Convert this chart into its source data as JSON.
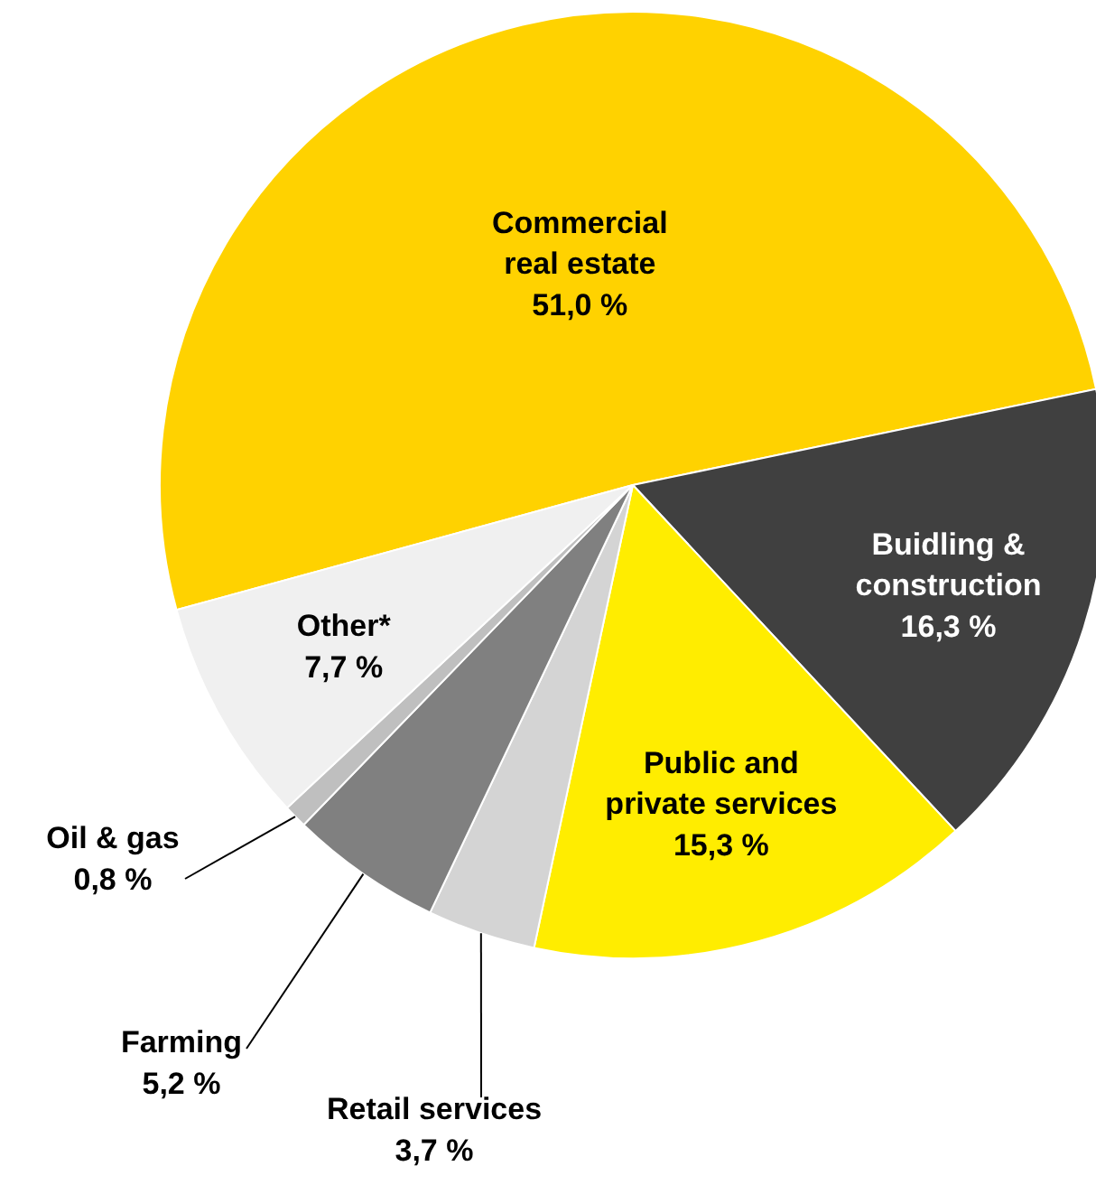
{
  "chart_data": {
    "type": "pie",
    "categories": [
      "Commercial\nreal estate",
      "Buidling &\nconstruction",
      "Public and\nprivate services",
      "Retail services",
      "Farming",
      "Oil & gas",
      "Other*"
    ],
    "values": [
      51.0,
      16.3,
      15.3,
      3.7,
      5.2,
      0.8,
      7.7
    ],
    "value_labels": [
      "51,0 %",
      "16,3 %",
      "15,3 %",
      "3,7 %",
      "5,2 %",
      "0,8 %",
      "7,7 %"
    ],
    "colors": [
      "#ffd200",
      "#404040",
      "#ffed00",
      "#d4d4d4",
      "#808080",
      "#bfbfbf",
      "#f0f0f0"
    ]
  }
}
